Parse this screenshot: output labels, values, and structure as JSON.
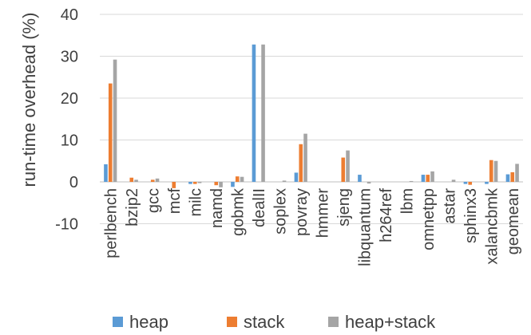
{
  "chart_data": {
    "type": "bar",
    "title": "",
    "xlabel": "",
    "ylabel": "run-time overhead (%)",
    "ylim": [
      -10,
      40
    ],
    "yticks": [
      -10,
      0,
      10,
      20,
      30,
      40
    ],
    "grid": true,
    "legend_position": "bottom",
    "categories": [
      "perlbench",
      "bzip2",
      "gcc",
      "mcf",
      "milc",
      "namd",
      "gobmk",
      "dealII",
      "soplex",
      "povray",
      "hmmer",
      "sjeng",
      "libquantum",
      "h264ref",
      "lbm",
      "omnetpp",
      "astar",
      "sphinx3",
      "xalancbmk",
      "geomean"
    ],
    "series": [
      {
        "name": "heap",
        "color": "#5B9BD5",
        "values": [
          4.2,
          0,
          0,
          0,
          -0.5,
          0,
          -1.2,
          32.8,
          0,
          2.2,
          0,
          0,
          1.7,
          0,
          0,
          1.7,
          0,
          -0.5,
          -0.5,
          1.8
        ]
      },
      {
        "name": "stack",
        "color": "#ED7D31",
        "values": [
          23.5,
          1.0,
          0.5,
          -1.5,
          -0.5,
          -0.8,
          1.3,
          0,
          0,
          9.0,
          0,
          5.8,
          0,
          0,
          0,
          1.7,
          0,
          -0.7,
          5.2,
          2.3
        ]
      },
      {
        "name": "heap+stack",
        "color": "#A5A5A5",
        "values": [
          29.2,
          0.5,
          0.8,
          0,
          -0.3,
          -1.3,
          1.2,
          32.8,
          0.3,
          11.5,
          0,
          7.5,
          -0.4,
          0,
          0.2,
          2.5,
          0.5,
          0,
          5.0,
          4.3
        ]
      }
    ]
  }
}
